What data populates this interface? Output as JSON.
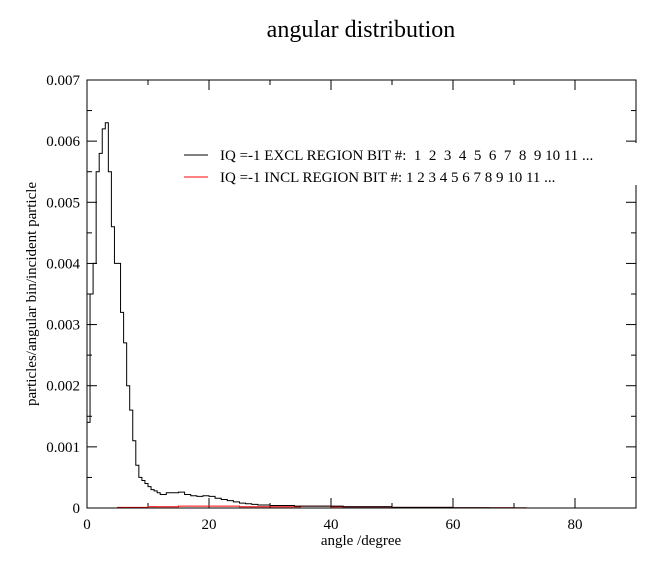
{
  "chart_data": {
    "type": "line",
    "title": "angular distribution",
    "xlabel": "angle /degree",
    "ylabel": "particles/angular bin/incident particle",
    "xlim": [
      0,
      90
    ],
    "ylim": [
      0,
      0.007
    ],
    "x_ticks": [
      0,
      20,
      40,
      60,
      80
    ],
    "x_tick_labels": [
      "0",
      "20",
      "40",
      "60",
      "80"
    ],
    "y_ticks": [
      0,
      0.001,
      0.002,
      0.003,
      0.004,
      0.005,
      0.006,
      0.007
    ],
    "y_tick_labels": [
      "0",
      "0.001",
      "0.002",
      "0.003",
      "0.004",
      "0.005",
      "0.006",
      "0.007"
    ],
    "grid": false,
    "legend_position": "top-right",
    "series": [
      {
        "name": "IQ =-1 EXCL REGION BIT #:  1  2  3  4  5  6  7  8  9 10 11 ...",
        "color": "#000000",
        "style": "step",
        "x": [
          0.0,
          0.5,
          1.0,
          1.5,
          2.0,
          2.5,
          3.0,
          3.5,
          4.0,
          4.5,
          5.0,
          5.5,
          6.0,
          6.5,
          7.0,
          7.5,
          8.0,
          8.5,
          9.0,
          9.5,
          10.0,
          10.5,
          11.0,
          11.5,
          12.0,
          12.5,
          13.0,
          14.0,
          15.0,
          16.0,
          17.0,
          18.0,
          19.0,
          20.0,
          21.0,
          22.0,
          23.0,
          24.0,
          25.0,
          26.0,
          27.0,
          28.0,
          30.0,
          32.0,
          34.0,
          36.0,
          38.0,
          40.0,
          42.0,
          44.0,
          46.0,
          48.0,
          50.0,
          52.0,
          55.0,
          58.0,
          60.0,
          63.0,
          66.0,
          69.0,
          71.0,
          72.0
        ],
        "y": [
          0.0014,
          0.0035,
          0.004,
          0.0055,
          0.0058,
          0.0062,
          0.0063,
          0.0055,
          0.0046,
          0.004,
          0.004,
          0.0032,
          0.0027,
          0.002,
          0.0016,
          0.0011,
          0.0007,
          0.0005,
          0.00045,
          0.0004,
          0.00035,
          0.0003,
          0.00028,
          0.00025,
          0.00022,
          0.00022,
          0.00025,
          0.00025,
          0.00026,
          0.00022,
          0.0002,
          0.00019,
          0.0002,
          0.00019,
          0.00016,
          0.00014,
          0.00012,
          0.0001,
          8e-05,
          7e-05,
          6e-05,
          5e-05,
          4e-05,
          4e-05,
          3e-05,
          3e-05,
          3e-05,
          3e-05,
          2e-05,
          2e-05,
          2e-05,
          2e-05,
          1e-05,
          1e-05,
          1e-05,
          1e-05,
          5e-06,
          5e-06,
          3e-06,
          3e-06,
          2e-06,
          0.0
        ]
      },
      {
        "name": "IQ =-1 INCL REGION BIT #: 1 2 3 4 5 6 7 8 9 10 11 ...",
        "color": "#ff0000",
        "style": "step",
        "x": [
          0.0,
          5.0,
          10.0,
          15.0,
          20.0,
          25.0,
          30.0,
          35.0,
          40.0,
          45.0,
          50.0,
          55.0,
          60.0,
          65.0,
          70.0,
          72.0
        ],
        "y": [
          0.0,
          1e-05,
          2e-05,
          3e-05,
          3e-05,
          2e-05,
          2e-05,
          3e-05,
          2e-05,
          2e-05,
          1e-05,
          1e-05,
          5e-06,
          5e-06,
          2e-06,
          0.0
        ]
      }
    ]
  }
}
